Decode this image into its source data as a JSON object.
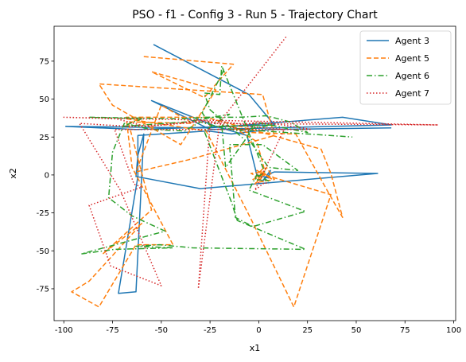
{
  "chart_data": {
    "type": "line",
    "title": "PSO - f1 - Config 3 - Run 5 - Trajectory Chart",
    "xlabel": "x1",
    "ylabel": "x2",
    "xlim": [
      -105,
      101
    ],
    "ylim": [
      -96,
      98
    ],
    "xticks": [
      -100,
      -75,
      -50,
      -25,
      0,
      25,
      50,
      75,
      100
    ],
    "yticks": [
      -75,
      -50,
      -25,
      0,
      25,
      50,
      75
    ],
    "legend_position": "top-right",
    "grid": false,
    "series": [
      {
        "name": "Agent 3",
        "color": "#1f77b4",
        "dash": "solid",
        "points": [
          [
            -54,
            86
          ],
          [
            -5,
            53
          ],
          [
            8,
            33
          ],
          [
            -63,
            30
          ],
          [
            -99,
            32
          ],
          [
            -25,
            31
          ],
          [
            43,
            38
          ],
          [
            68,
            33
          ],
          [
            -25,
            30
          ],
          [
            -55,
            49
          ],
          [
            -22,
            32
          ],
          [
            -6,
            26
          ],
          [
            -1,
            0
          ],
          [
            5,
            -2
          ],
          [
            6,
            3
          ],
          [
            2,
            -4
          ],
          [
            6,
            1
          ],
          [
            8,
            2
          ],
          [
            61,
            1
          ],
          [
            -30,
            -9
          ],
          [
            -63,
            -1
          ],
          [
            -62,
            13
          ],
          [
            -59,
            27
          ],
          [
            -63,
            -77
          ],
          [
            -72,
            -78
          ],
          [
            -62,
            -1
          ],
          [
            -62,
            26
          ],
          [
            -26,
            29
          ],
          [
            -14,
            27
          ],
          [
            -8,
            28
          ],
          [
            6,
            30
          ],
          [
            68,
            31
          ]
        ]
      },
      {
        "name": "Agent 5",
        "color": "#ff7f0e",
        "dash": "dashed",
        "points": [
          [
            -59,
            78
          ],
          [
            -13,
            73
          ],
          [
            -28,
            51
          ],
          [
            -55,
            68
          ],
          [
            -22,
            56
          ],
          [
            -40,
            20
          ],
          [
            -75,
            46
          ],
          [
            -82,
            60
          ],
          [
            -58,
            58
          ],
          [
            2,
            53
          ],
          [
            8,
            26
          ],
          [
            -36,
            10
          ],
          [
            -63,
            2
          ],
          [
            -50,
            46
          ],
          [
            -34,
            34
          ],
          [
            -67,
            35
          ],
          [
            -55,
            -23
          ],
          [
            -80,
            -52
          ],
          [
            -60,
            -32
          ],
          [
            -87,
            -70
          ],
          [
            -96,
            -77
          ],
          [
            -82,
            -87
          ],
          [
            -63,
            -46
          ],
          [
            -44,
            -46
          ],
          [
            -65,
            5
          ],
          [
            -68,
            38
          ],
          [
            -27,
            38
          ],
          [
            -4,
            30
          ],
          [
            32,
            17
          ],
          [
            37,
            1
          ],
          [
            43,
            -28
          ],
          [
            35,
            -10
          ],
          [
            19,
            27
          ],
          [
            -6,
            28
          ],
          [
            -14,
            32
          ],
          [
            -1,
            22
          ],
          [
            3,
            3
          ],
          [
            -2,
            -6
          ],
          [
            3,
            0
          ],
          [
            -1,
            3
          ],
          [
            7,
            -3
          ],
          [
            2,
            2
          ],
          [
            -4,
            1
          ],
          [
            1,
            -2
          ],
          [
            4,
            5
          ],
          [
            8,
            -3
          ],
          [
            -1,
            -5
          ],
          [
            2,
            4
          ],
          [
            -3,
            -3
          ],
          [
            3,
            0
          ],
          [
            37,
            -13
          ],
          [
            18,
            -87
          ],
          [
            -4,
            -29
          ],
          [
            -27,
            29
          ],
          [
            -68,
            37
          ]
        ]
      },
      {
        "name": "Agent 6",
        "color": "#2ca02c",
        "dash": "dashdot",
        "points": [
          [
            -18,
            69
          ],
          [
            -29,
            41
          ],
          [
            -25,
            33
          ],
          [
            -10,
            29
          ],
          [
            -2,
            31
          ],
          [
            7,
            33
          ],
          [
            -22,
            32
          ],
          [
            -30,
            35
          ],
          [
            -38,
            29
          ],
          [
            -55,
            30
          ],
          [
            -69,
            34
          ],
          [
            -75,
            15
          ],
          [
            -77,
            -15
          ],
          [
            -65,
            -27
          ],
          [
            -48,
            -37
          ],
          [
            -91,
            -52
          ],
          [
            -74,
            -49
          ],
          [
            -44,
            -48
          ],
          [
            -63,
            -47
          ],
          [
            -51,
            -46
          ],
          [
            -34,
            -48
          ],
          [
            24,
            -49
          ],
          [
            -11,
            -30
          ],
          [
            -14,
            -18
          ],
          [
            -28,
            29
          ],
          [
            -15,
            40
          ],
          [
            -37,
            35
          ],
          [
            -70,
            32
          ],
          [
            -60,
            37
          ],
          [
            -87,
            38
          ],
          [
            -40,
            37
          ],
          [
            -27,
            38
          ],
          [
            -10,
            38
          ],
          [
            4,
            39
          ],
          [
            16,
            35
          ],
          [
            25,
            28
          ],
          [
            -2,
            35
          ],
          [
            -6,
            25
          ],
          [
            5,
            5
          ],
          [
            20,
            3
          ],
          [
            2,
            20
          ],
          [
            -15,
            20
          ],
          [
            -12,
            -28
          ],
          [
            -3,
            -34
          ],
          [
            24,
            -24
          ],
          [
            -5,
            -10
          ],
          [
            -1,
            0
          ],
          [
            5,
            -4
          ],
          [
            -2,
            -3
          ],
          [
            3,
            2
          ],
          [
            -19,
            72
          ],
          [
            -20,
            53
          ],
          [
            -28,
            54
          ],
          [
            -25,
            43
          ],
          [
            -16,
            33
          ],
          [
            -7,
            23
          ],
          [
            -17,
            5
          ],
          [
            -19,
            33
          ],
          [
            -9,
            30
          ],
          [
            48,
            25
          ]
        ]
      },
      {
        "name": "Agent 7",
        "color": "#d62728",
        "dash": "dotted",
        "points": [
          [
            14,
            91
          ],
          [
            -20,
            35
          ],
          [
            -31,
            -75
          ],
          [
            -25,
            34
          ],
          [
            92,
            33
          ],
          [
            -100,
            38
          ],
          [
            -73,
            37
          ],
          [
            -58,
            32
          ],
          [
            -30,
            35
          ],
          [
            -17,
            35
          ],
          [
            -7,
            33
          ],
          [
            -1,
            35
          ],
          [
            12,
            33
          ],
          [
            27,
            30
          ],
          [
            -17,
            30
          ],
          [
            -74,
            30
          ],
          [
            -64,
            -6
          ],
          [
            -60,
            -8
          ],
          [
            -87,
            -20
          ],
          [
            -76,
            -60
          ],
          [
            -50,
            -73
          ],
          [
            -71,
            -10
          ],
          [
            -92,
            34
          ],
          [
            -66,
            32
          ],
          [
            -50,
            33
          ],
          [
            -28,
            36
          ],
          [
            -5,
            29
          ],
          [
            -6,
            32
          ],
          [
            13,
            30
          ],
          [
            -2,
            -10
          ],
          [
            3,
            -5
          ],
          [
            5,
            -6
          ]
        ]
      }
    ]
  }
}
